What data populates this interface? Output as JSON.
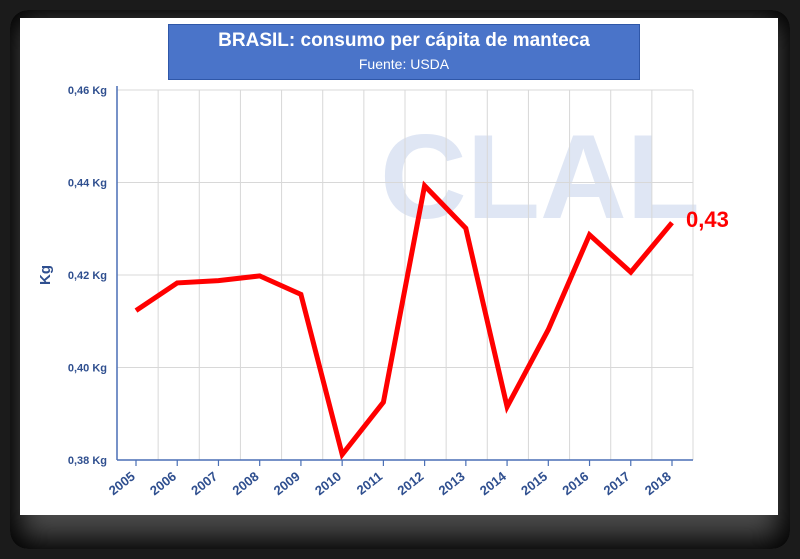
{
  "chart_data": {
    "type": "line",
    "title": "BRASIL: consumo per cápita de manteca",
    "subtitle": "Fuente: USDA",
    "ylabel": "Kg",
    "xlabel": "",
    "x": [
      "2005",
      "2006",
      "2007",
      "2008",
      "2009",
      "2010",
      "2011",
      "2012",
      "2013",
      "2014",
      "2015",
      "2016",
      "2017",
      "2018"
    ],
    "series": [
      {
        "values": [
          0.4123,
          0.4183,
          0.4188,
          0.4198,
          0.4158,
          0.3812,
          0.3925,
          0.4393,
          0.4301,
          0.3915,
          0.4082,
          0.4287,
          0.4206,
          0.4313
        ]
      }
    ],
    "ylim": [
      0.38,
      0.46
    ],
    "yticks": [
      {
        "value": 0.46,
        "label": "0,46 Kg"
      },
      {
        "value": 0.44,
        "label": "0,44 Kg"
      },
      {
        "value": 0.42,
        "label": "0,42 Kg"
      },
      {
        "value": 0.4,
        "label": "0,40 Kg"
      },
      {
        "value": 0.38,
        "label": "0,38 Kg"
      }
    ],
    "end_label": "0,43",
    "line_color": "#ff0000",
    "grid": true,
    "legend": "none"
  },
  "watermark": "CLAL"
}
